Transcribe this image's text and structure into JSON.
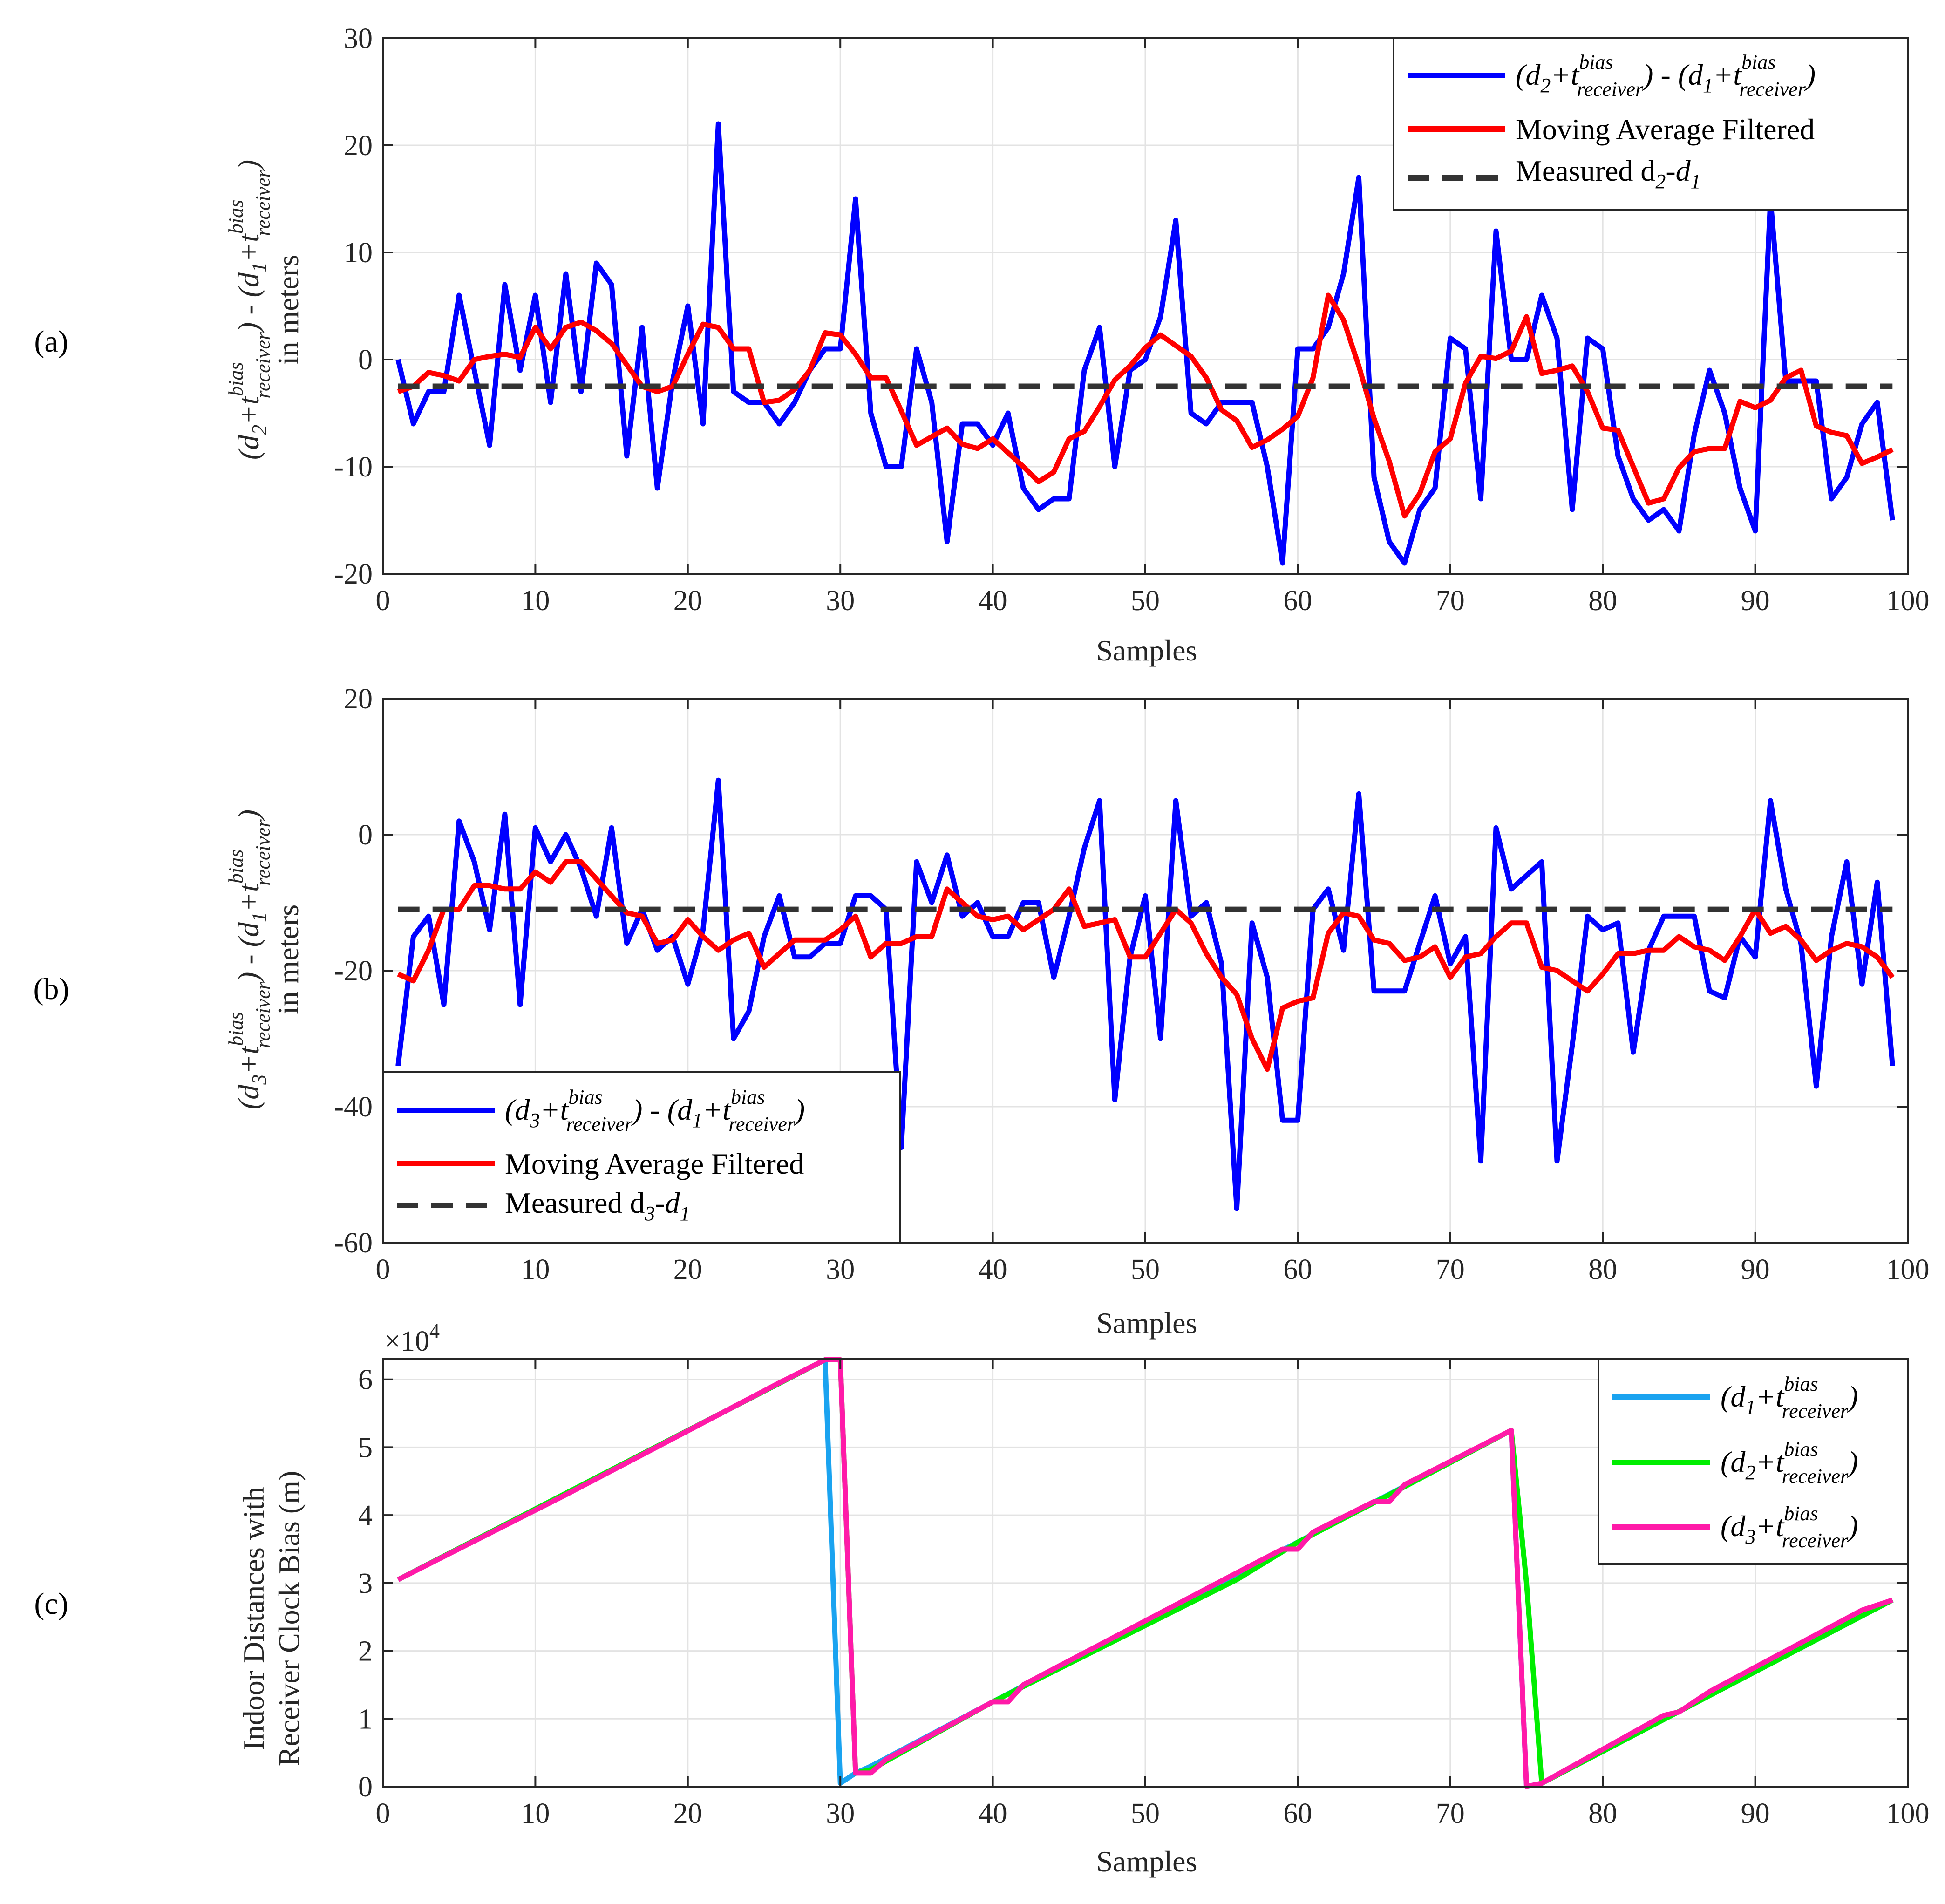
{
  "chart_data": [
    {
      "panel_label": "(a)",
      "type": "line",
      "xlabel": "Samples",
      "ylabel": {
        "line1": "(d2+t bias receiver) - (d1+t bias receiver)",
        "line2": "in meters"
      },
      "xlim": [
        0,
        100
      ],
      "ylim": [
        -20,
        30
      ],
      "xticks": [
        0,
        10,
        20,
        30,
        40,
        50,
        60,
        70,
        80,
        90,
        100
      ],
      "yticks": [
        -20,
        -10,
        0,
        10,
        20,
        30
      ],
      "grid": true,
      "legend_position": "top-right",
      "series": [
        {
          "name": "(d2+t bias receiver) - (d1+t bias receiver)",
          "color": "#0000ff",
          "style": "solid",
          "x_start": 1,
          "values": [
            0,
            -6,
            -3,
            -3,
            6,
            -1,
            -8,
            7,
            -1,
            6,
            -4,
            8,
            -3,
            9,
            7,
            -9,
            3,
            -12,
            -2,
            5,
            -6,
            22,
            -3,
            -4,
            -4,
            -6,
            -4,
            -1,
            1,
            1,
            15,
            -5,
            -10,
            -10,
            1,
            -4,
            -17,
            -6,
            -6,
            -8,
            -5,
            -12,
            -14,
            -13,
            -13,
            -1,
            3,
            -10,
            -1,
            0,
            4,
            13,
            -5,
            -6,
            -4,
            -4,
            -4,
            -10,
            -19,
            1,
            1,
            3,
            8,
            17,
            -11,
            -17,
            -19,
            -14,
            -12,
            2,
            1,
            -13,
            12,
            0,
            0,
            6,
            2,
            -14,
            2,
            1,
            -9,
            -13,
            -15,
            -14,
            -16,
            -7,
            -1,
            -5,
            -12,
            -16,
            15,
            -2,
            -2,
            -2,
            -13,
            -11,
            -6,
            -4,
            -15
          ]
        },
        {
          "name": "Moving Average Filtered",
          "color": "#ff0000",
          "style": "solid",
          "x_start": 1,
          "values": [
            -3,
            -2.5,
            -1.2,
            -1.5,
            -2,
            0,
            0.3,
            0.5,
            0.2,
            3,
            1,
            3,
            3.5,
            2.7,
            1.5,
            -0.5,
            -2.5,
            -3,
            -2.5,
            0.5,
            3.3,
            3,
            1,
            1,
            -4,
            -3.8,
            -2.8,
            -1,
            2.5,
            2.3,
            0.5,
            -1.7,
            -1.7,
            -4.8,
            -8,
            -7.2,
            -6.4,
            -7.9,
            -8.3,
            -7.4,
            -8.7,
            -10,
            -11.4,
            -10.5,
            -7.4,
            -6.7,
            -4.4,
            -1.9,
            -0.6,
            1.1,
            2.3,
            1.3,
            0.3,
            -1.7,
            -4.7,
            -5.7,
            -8.2,
            -7.5,
            -6.5,
            -5.3,
            -1.7,
            6,
            3.7,
            -0.6,
            -5.5,
            -9.5,
            -14.6,
            -12.5,
            -8.6,
            -7.4,
            -2.2,
            0.3,
            0.1,
            0.8,
            4,
            -1.3,
            -1,
            -0.6,
            -3,
            -6.4,
            -6.6,
            -10,
            -13.4,
            -13,
            -10.1,
            -8.6,
            -8.3,
            -8.3,
            -3.9,
            -4.5,
            -3.8,
            -1.7,
            -1,
            -6.2,
            -6.8,
            -7.1,
            -9.7,
            -9.1,
            -8.4
          ]
        },
        {
          "name": "Measured d2-d1",
          "color": "#333333",
          "style": "dashed",
          "x": [
            1,
            99
          ],
          "values": [
            -2.5,
            -2.5
          ]
        }
      ],
      "legend": [
        {
          "main": "(d",
          "sub1": "2",
          "mid1": "+t",
          "sup1": "bias",
          "sub1b": "receiver",
          "mid2": ") - (d",
          "sub2": "1",
          "mid3": "+t",
          "sup2": "bias",
          "sub2b": "receiver",
          "end": ")"
        },
        {
          "text": "Moving Average Filtered"
        },
        {
          "main": "Measured d",
          "sub1": "2",
          "mid1": "-d",
          "sub2": "1"
        }
      ]
    },
    {
      "panel_label": "(b)",
      "type": "line",
      "xlabel": "Samples",
      "ylabel": {
        "line1": "(d3+t bias receiver) - (d1+t bias receiver)",
        "line2": "in meters"
      },
      "xlim": [
        0,
        100
      ],
      "ylim": [
        -60,
        20
      ],
      "xticks": [
        0,
        10,
        20,
        30,
        40,
        50,
        60,
        70,
        80,
        90,
        100
      ],
      "yticks": [
        -60,
        -40,
        -20,
        0,
        20
      ],
      "grid": true,
      "legend_position": "bottom-left",
      "series": [
        {
          "name": "(d3+t bias receiver) - (d1+t bias receiver)",
          "color": "#0000ff",
          "style": "solid",
          "x_start": 1,
          "values": [
            -34,
            -15,
            -12,
            -25,
            2,
            -4,
            -14,
            3,
            -25,
            1,
            -4,
            0,
            -5,
            -12,
            1,
            -16,
            -11,
            -17,
            -15,
            -22,
            -14,
            8,
            -30,
            -26,
            -15,
            -9,
            -18,
            -18,
            -16,
            -16,
            -9,
            -9,
            -11,
            -46,
            -4,
            -10,
            -3,
            -12,
            -10,
            -15,
            -15,
            -10,
            -10,
            -21,
            -12,
            -2,
            5,
            -39,
            -18,
            -9,
            -30,
            5,
            -12,
            -10,
            -19,
            -55,
            -13,
            -21,
            -42,
            -42,
            -11,
            -8,
            -17,
            6,
            -23,
            -23,
            -23,
            -16,
            -9,
            -19,
            -15,
            -48,
            1,
            -8,
            -6,
            -4,
            -48,
            -31,
            -12,
            -14,
            -13,
            -32,
            -17,
            -12,
            -12,
            -12,
            -23,
            -24,
            -15,
            -18,
            5,
            -8,
            -16,
            -37,
            -15,
            -4,
            -22,
            -7,
            -34
          ]
        },
        {
          "name": "Moving Average Filtered",
          "color": "#ff0000",
          "style": "solid",
          "x_start": 1,
          "values": [
            -20.5,
            -21.5,
            -17,
            -11,
            -11,
            -7.5,
            -7.5,
            -8,
            -8,
            -5.5,
            -7,
            -4,
            -4,
            -6.5,
            -9,
            -11.5,
            -12,
            -16,
            -15.5,
            -12.5,
            -15,
            -17,
            -15.5,
            -14.5,
            -19.5,
            -17.5,
            -15.5,
            -15.5,
            -15.5,
            -14,
            -12,
            -18,
            -16,
            -16,
            -15,
            -15,
            -8,
            -10,
            -12,
            -12.5,
            -12,
            -14,
            -12.5,
            -11,
            -8,
            -13.5,
            -13,
            -12.5,
            -18,
            -18,
            -14.5,
            -11,
            -13,
            -17.5,
            -21,
            -23.5,
            -30,
            -34.5,
            -25.5,
            -24.5,
            -24,
            -14.5,
            -11.5,
            -12,
            -15.5,
            -16,
            -18.5,
            -18,
            -16.5,
            -21,
            -18,
            -17.5,
            -15,
            -13,
            -13,
            -19.5,
            -20,
            -21.5,
            -23,
            -20.5,
            -17.5,
            -17.5,
            -17,
            -17,
            -15,
            -16.5,
            -17,
            -18.5,
            -15,
            -11,
            -14.5,
            -13.5,
            -15.5,
            -18.5,
            -17,
            -16,
            -16.5,
            -18,
            -21
          ]
        },
        {
          "name": "Measured d3-d1",
          "color": "#333333",
          "style": "dashed",
          "x": [
            1,
            99
          ],
          "values": [
            -11,
            -11
          ]
        }
      ],
      "legend": [
        {
          "main": "(d",
          "sub1": "3",
          "mid1": "+t",
          "sup1": "bias",
          "sub1b": "receiver",
          "mid2": ") - (d",
          "sub2": "1",
          "mid3": "+t",
          "sup2": "bias",
          "sub2b": "receiver",
          "end": ")"
        },
        {
          "text": "Moving Average Filtered"
        },
        {
          "main": "Measured d",
          "sub1": "3",
          "mid1": "-d",
          "sub2": "1"
        }
      ]
    },
    {
      "panel_label": "(c)",
      "type": "line",
      "xlabel": "Samples",
      "ylabel": {
        "line1": "Indoor Distances with",
        "line2": "Receiver Clock Bias (m)"
      },
      "exponent_label": "×10",
      "exponent_power": "4",
      "xlim": [
        0,
        100
      ],
      "ylim": [
        0,
        6.3
      ],
      "ylim_units_note": "values in units of 10^4 m",
      "xticks": [
        0,
        10,
        20,
        30,
        40,
        50,
        60,
        70,
        80,
        90,
        100
      ],
      "yticks": [
        0,
        1,
        2,
        3,
        4,
        5,
        6
      ],
      "grid": true,
      "legend_position": "top-right",
      "series": [
        {
          "name": "(d1+t bias receiver)",
          "color": "#1aa3f0",
          "style": "solid",
          "x": [
            1,
            29,
            30,
            31,
            32,
            40,
            74,
            75,
            76,
            99
          ],
          "values": [
            3.05,
            6.29,
            0.05,
            0.2,
            0.3,
            1.25,
            5.25,
            0.0,
            0.05,
            2.75
          ]
        },
        {
          "name": "(d2+t bias receiver)",
          "color": "#00ee00",
          "style": "solid",
          "x": [
            1,
            29,
            30,
            31,
            32,
            40,
            56,
            60,
            66,
            74,
            75,
            76,
            99
          ],
          "values": [
            3.05,
            6.29,
            6.29,
            0.2,
            0.25,
            1.25,
            3.05,
            3.6,
            4.3,
            5.25,
            3.0,
            0.05,
            2.75
          ]
        },
        {
          "name": "(d3+t bias receiver)",
          "color": "#ff1aa8",
          "style": "solid",
          "x": [
            1,
            12,
            26,
            29,
            30,
            31,
            32,
            33,
            40,
            41,
            42,
            56,
            59,
            60,
            61,
            65,
            66,
            67,
            74,
            75,
            76,
            84,
            85,
            87,
            97,
            99
          ],
          "values": [
            3.05,
            4.3,
            5.95,
            6.29,
            6.29,
            0.2,
            0.2,
            0.4,
            1.25,
            1.25,
            1.5,
            3.15,
            3.5,
            3.5,
            3.75,
            4.2,
            4.2,
            4.45,
            5.25,
            0.0,
            0.05,
            1.05,
            1.1,
            1.4,
            2.6,
            2.75
          ]
        }
      ],
      "legend": [
        {
          "main": "(d",
          "sub1": "1",
          "mid1": "+t",
          "sup1": "bias",
          "sub1b": "receiver",
          "end": ")"
        },
        {
          "main": "(d",
          "sub1": "2",
          "mid1": "+t",
          "sup1": "bias",
          "sub1b": "receiver",
          "end": ")"
        },
        {
          "main": "(d",
          "sub1": "3",
          "mid1": "+t",
          "sup1": "bias",
          "sub1b": "receiver",
          "end": ")"
        }
      ]
    }
  ]
}
